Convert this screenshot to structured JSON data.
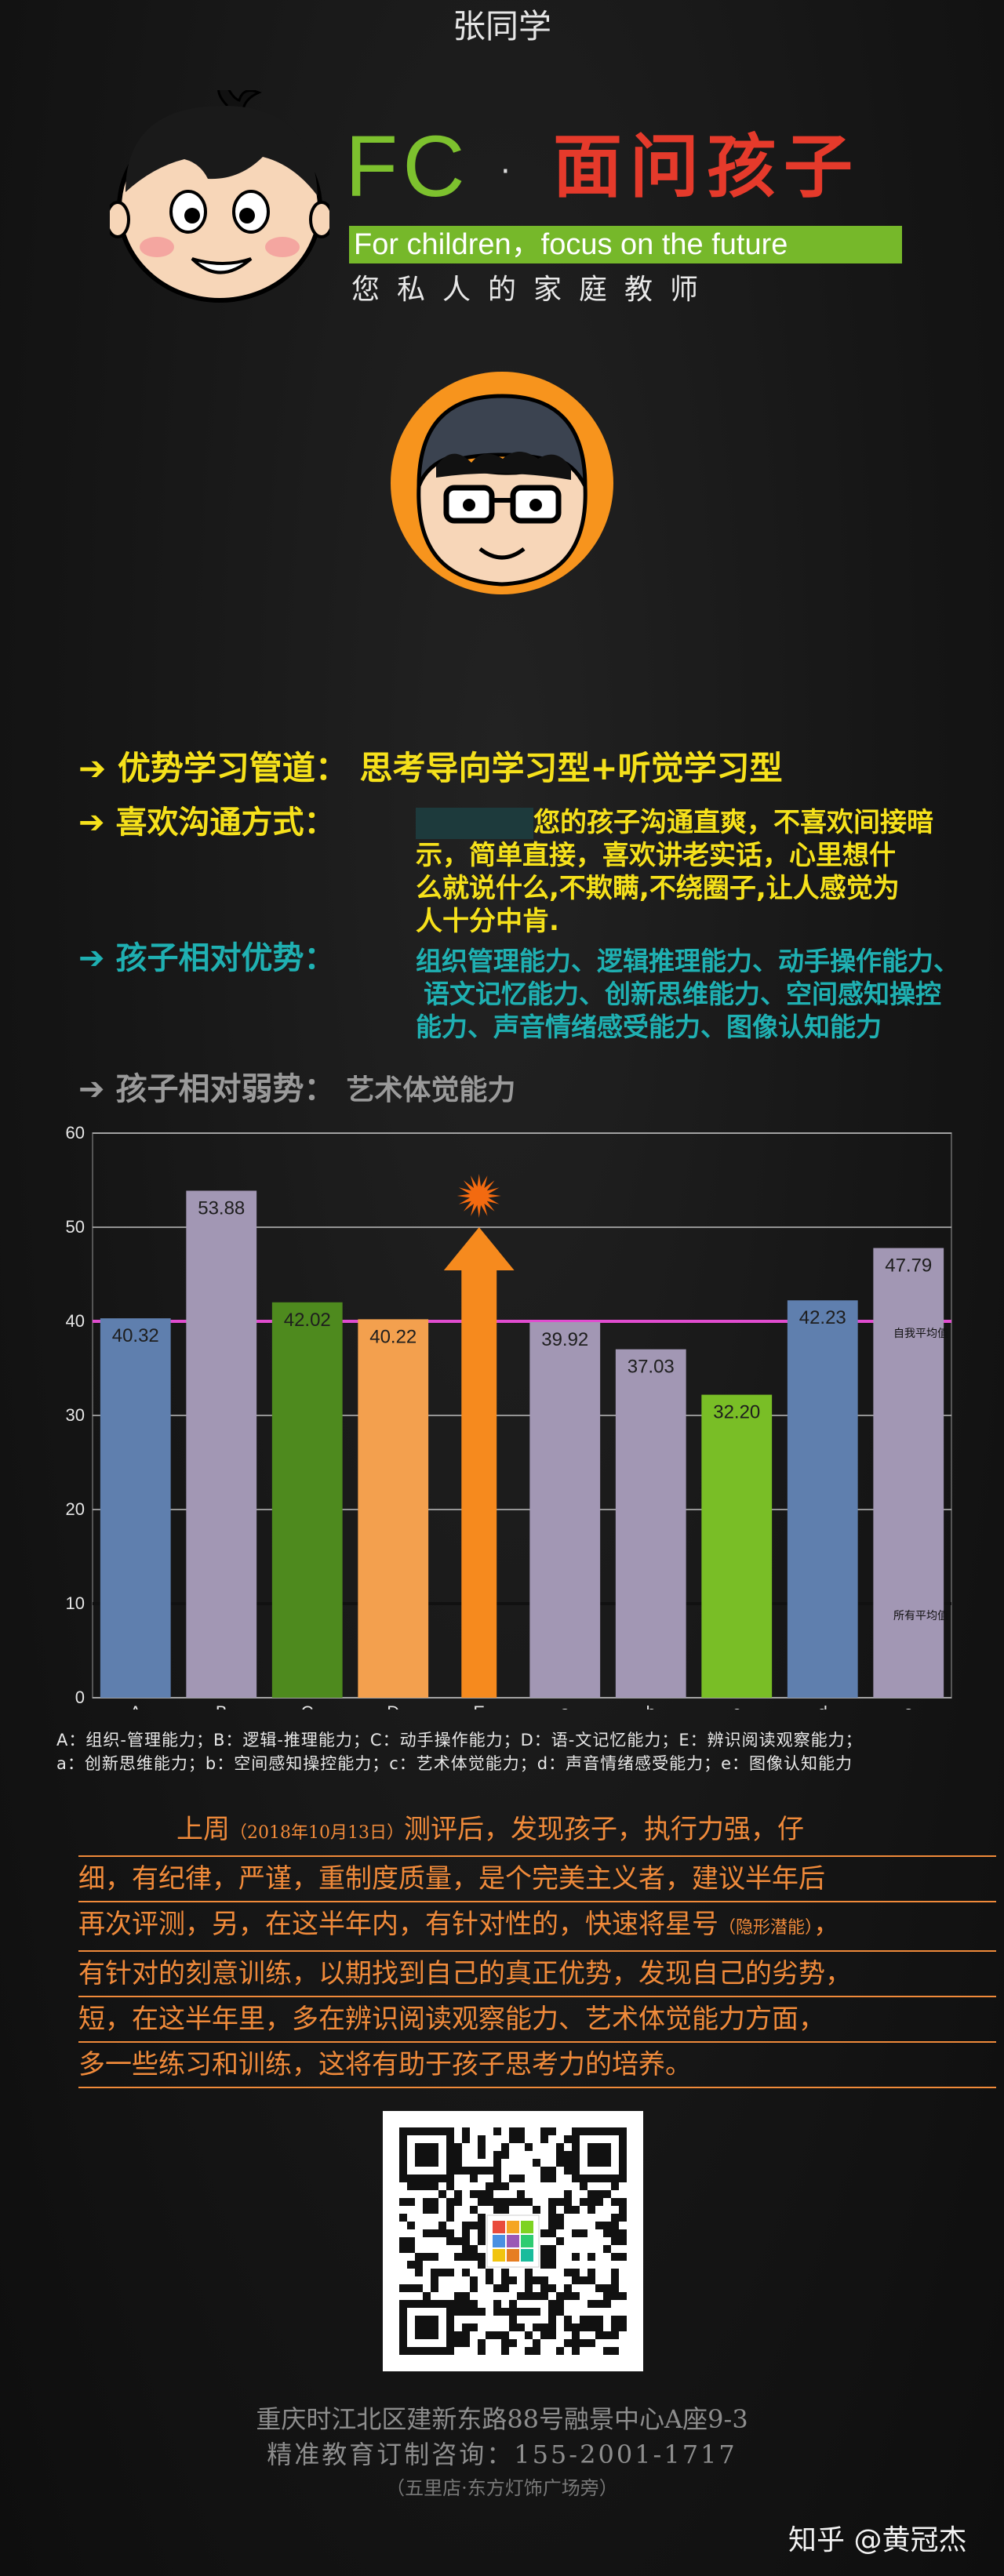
{
  "header": {
    "logo_fc": "FC",
    "logo_dot": "·",
    "logo_cn": "面问孩子",
    "slogan": "For children，focus on the future",
    "tagline": "您私人的家庭教师"
  },
  "student": {
    "name": "张同学"
  },
  "profile": {
    "learning_channel": {
      "label": "优势学习管道：",
      "value": "思考导向学习型+听觉学习型"
    },
    "communication": {
      "label": "喜欢沟通方式：",
      "lines": [
        "您的孩子沟通直爽，不喜欢间接暗",
        "示，简单直接，喜欢讲老实话，心里想什",
        "么就说什么,不欺瞒,不绕圈子,让人感觉为",
        "人十分中肯."
      ]
    },
    "strengths": {
      "label": "孩子相对优势：",
      "lines": [
        "组织管理能力、逻辑推理能力、动手操作能力、",
        "语文记忆能力、创新思维能力、空间感知操控",
        "能力、声音情绪感受能力、图像认知能力"
      ]
    },
    "weakness": {
      "label": "孩子相对弱势：",
      "value": "艺术体觉能力"
    },
    "colors": {
      "yellow": "#f6e11b",
      "teal": "#1fb0b2",
      "gray": "#9a9a9a"
    }
  },
  "chart_data": {
    "type": "bar",
    "categories": [
      "A",
      "B",
      "C",
      "D",
      "E",
      "a",
      "b",
      "c",
      "d",
      "e"
    ],
    "values": [
      40.32,
      53.88,
      42.02,
      40.22,
      50,
      39.92,
      37.03,
      32.2,
      42.23,
      47.79
    ],
    "value_labels": [
      "40.32",
      "53.88",
      "42.02",
      "40.22",
      "",
      "39.92",
      "37.03",
      "32.20",
      "42.23",
      "47.79"
    ],
    "bar_colors": [
      "#5f7fae",
      "#a297b4",
      "#4e8a1e",
      "#f3a04e",
      "#f68a1e",
      "#a297b4",
      "#a297b4",
      "#79be26",
      "#5f7fae",
      "#a297b4"
    ],
    "highlight_category": "E",
    "ylim": [
      0,
      60
    ],
    "yticks": [
      "0",
      "10",
      "20",
      "30",
      "40",
      "50",
      "60"
    ],
    "reference_lines": [
      {
        "label": "自我平均值",
        "value": 40,
        "color": "#e04ccf"
      },
      {
        "label": "所有平均值",
        "value": 10,
        "color": "#111111"
      }
    ],
    "grid": true
  },
  "legend": {
    "line1": "A：组织-管理能力；B：逻辑-推理能力；C：动手操作能力；D：语-文记忆能力；E：辨识阅读观察能力；",
    "line2": "a：创新思维能力；b：空间感知操控能力；c：艺术体觉能力；d：声音情绪感受能力；e：图像认知能力"
  },
  "report": {
    "l1a": "上周",
    "l1b": "（2018年10月13日）",
    "l1c": "测评后，发现孩子，执行力强，仔",
    "l2": "细，有纪律，严谨，重制度质量，是个完美主义者，建议半年后",
    "l3a": "再次评测，另，在这半年内，有针对性的，快速将星号",
    "l3b": "（隐形潜能）",
    "l3c": "，",
    "l4": "有针对的刻意训练，以期找到自己的真正优势，发现自己的劣势，",
    "l5": "短，在这半年里，多在辨识阅读观察能力、艺术体觉能力方面，",
    "l6": "多一些练习和训练，这将有助于孩子思考力的培养。"
  },
  "footer": {
    "address": "重庆时江北区建新东路88号融景中心A座9-3",
    "phone": "精准教育订制咨询：155-2001-1717",
    "branch": "（五里店·东方灯饰广场旁）"
  },
  "watermark": "知乎 @黄冠杰"
}
